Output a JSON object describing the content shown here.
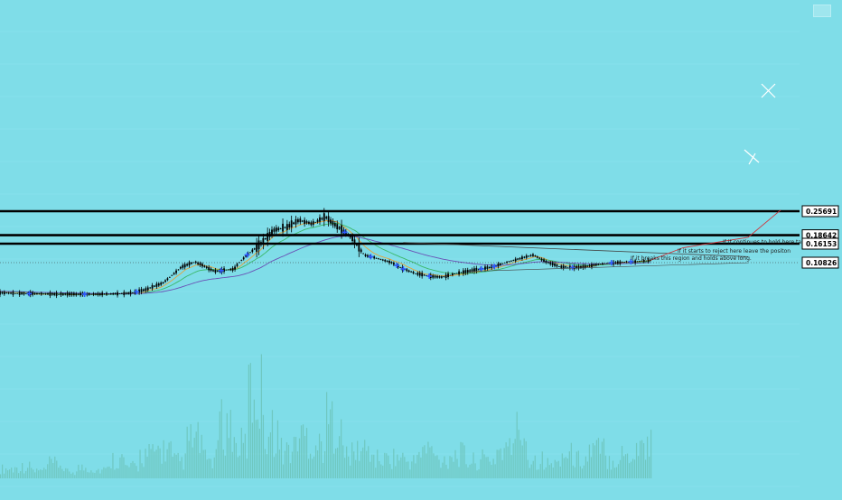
{
  "header": {
    "symbol_line": "",
    "indicator_lines": [
      "",
      "",
      ""
    ]
  },
  "colors": {
    "background": "#7fdde8",
    "candle": "#000000",
    "volume": "#6cc3b8",
    "ema_short": "#e6a33a",
    "ema_mid": "#3bb86a",
    "ema_long": "#6a4fb5",
    "trendline": "#444444",
    "projection": "#d0343b",
    "marker": "#2e5cff",
    "x_marks": "#ffffff"
  },
  "annotations": {
    "note_1": "If it continues to hold here take",
    "note_2": "If it starts to reject here leave the positon",
    "note_3": "If it breaks this region and holds above long."
  },
  "chart_data": {
    "type": "candlestick",
    "title": "",
    "price_levels": [
      {
        "value": 0.25691,
        "label": "0.25691"
      },
      {
        "value": 0.18642,
        "label": "0.18642"
      },
      {
        "value": 0.16153,
        "label": "0.16153"
      },
      {
        "value": 0.10826,
        "label": "0.10826",
        "style": "dotted"
      }
    ],
    "price_series": {
      "x": [
        0,
        0.05,
        0.1,
        0.15,
        0.2,
        0.22,
        0.25,
        0.28,
        0.3,
        0.33,
        0.36,
        0.38,
        0.4,
        0.42,
        0.44,
        0.46,
        0.48,
        0.5,
        0.52,
        0.54,
        0.56,
        0.58,
        0.6,
        0.62,
        0.64,
        0.66,
        0.68,
        0.7,
        0.72,
        0.74,
        0.76,
        0.78,
        0.8,
        0.82,
        0.84,
        0.86,
        0.88,
        0.9,
        0.92,
        0.94,
        0.96,
        0.98,
        1.0
      ],
      "close": [
        0.045,
        0.043,
        0.042,
        0.042,
        0.044,
        0.05,
        0.065,
        0.1,
        0.11,
        0.09,
        0.095,
        0.13,
        0.16,
        0.2,
        0.21,
        0.23,
        0.22,
        0.24,
        0.21,
        0.18,
        0.13,
        0.12,
        0.11,
        0.095,
        0.085,
        0.08,
        0.078,
        0.085,
        0.09,
        0.095,
        0.1,
        0.11,
        0.12,
        0.13,
        0.11,
        0.1,
        0.098,
        0.1,
        0.105,
        0.108,
        0.11,
        0.112,
        0.115
      ]
    },
    "projection": {
      "x": [
        1.0,
        1.05,
        1.1,
        1.15,
        1.2
      ],
      "y": [
        0.115,
        0.15,
        0.165,
        0.18,
        0.26
      ]
    },
    "volume": {
      "values": [
        0.1,
        0.12,
        0.08,
        0.15,
        0.07,
        0.11,
        0.09,
        0.2,
        0.12,
        0.25,
        0.3,
        0.18,
        0.4,
        0.2,
        0.55,
        0.35,
        0.9,
        0.5,
        0.3,
        0.45,
        0.35,
        0.6,
        0.25,
        0.3,
        0.2,
        0.22,
        0.18,
        0.3,
        0.2,
        0.25,
        0.18,
        0.2,
        0.3,
        0.5,
        0.2,
        0.15,
        0.25,
        0.2,
        0.3,
        0.2,
        0.25,
        0.35,
        0.6
      ]
    },
    "xlabel": "",
    "ylabel": ""
  }
}
